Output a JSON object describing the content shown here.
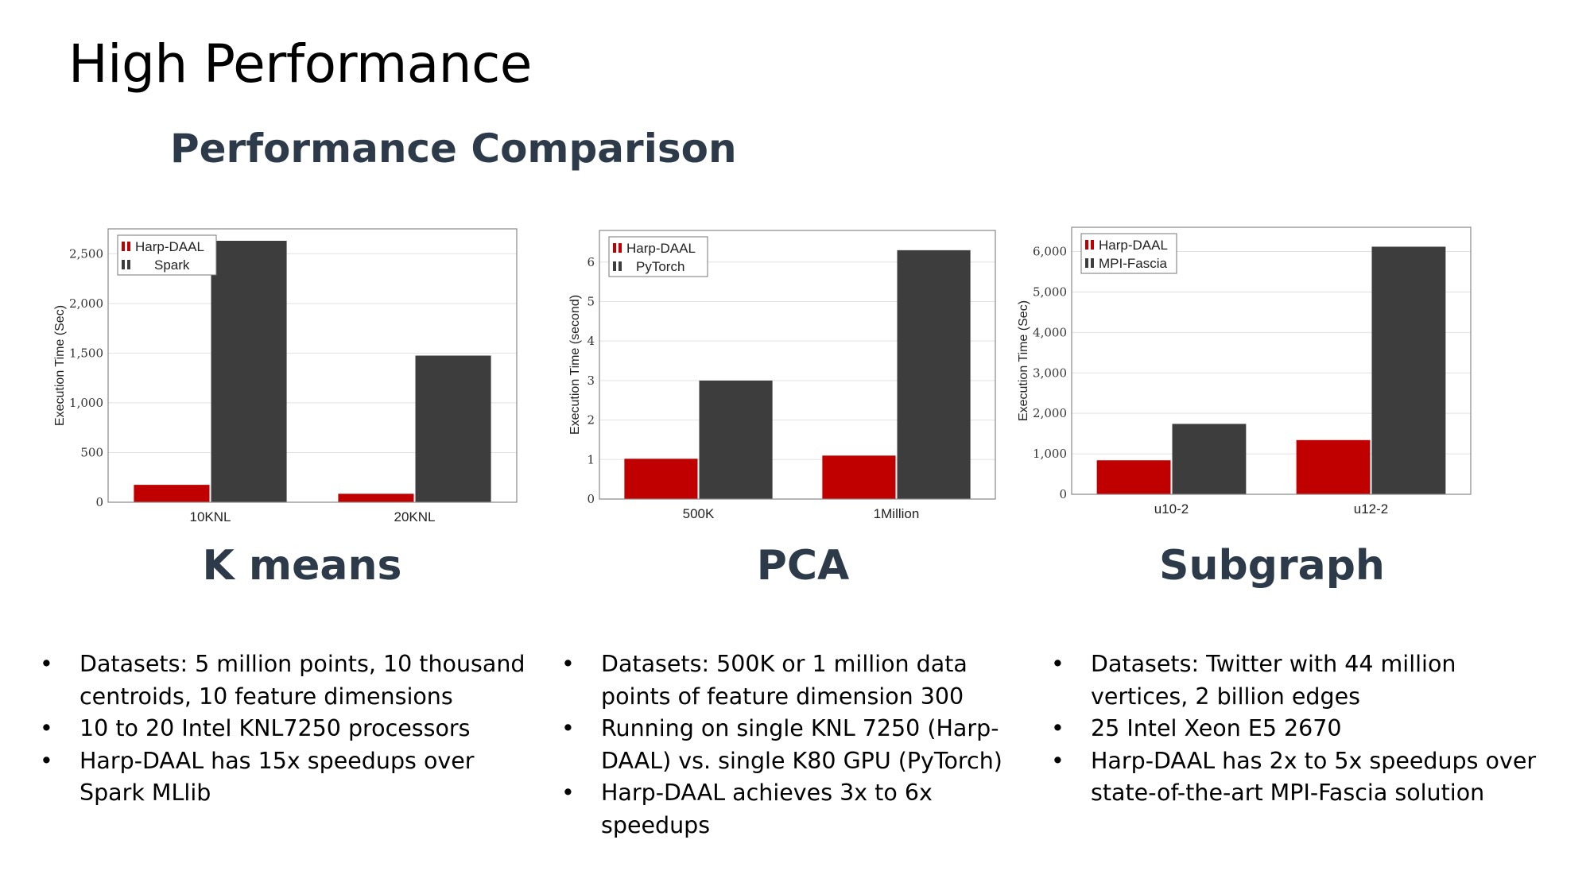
{
  "slide": {
    "title": "High Performance",
    "subtitle": "Performance Comparison"
  },
  "colors": {
    "series_a": "#c00000",
    "series_b": "#3d3d3d",
    "heading": "#2c3a4a"
  },
  "chart_data": [
    {
      "type": "bar",
      "name": "K means",
      "categories": [
        "10KNL",
        "20KNL"
      ],
      "series": [
        {
          "name": "Harp-DAAL",
          "values": [
            175,
            85
          ]
        },
        {
          "name": "Spark",
          "values": [
            2630,
            1475
          ]
        }
      ],
      "ylabel": "Execution Time (Sec)",
      "xlabel": "",
      "ylim": [
        0,
        2750
      ],
      "yticks": [
        0,
        500,
        1000,
        1500,
        2000,
        2500
      ],
      "ytick_labels": [
        "0",
        "500",
        "1,000",
        "1,500",
        "2,000",
        "2,500"
      ],
      "grid": true,
      "legend": "top-left"
    },
    {
      "type": "bar",
      "name": "PCA",
      "categories": [
        "500K",
        "1Million"
      ],
      "series": [
        {
          "name": "Harp-DAAL",
          "values": [
            1.02,
            1.1
          ]
        },
        {
          "name": "PyTorch",
          "values": [
            3.0,
            6.3
          ]
        }
      ],
      "ylabel": "Execution Time (second)",
      "xlabel": "",
      "ylim": [
        0,
        6.8
      ],
      "yticks": [
        0,
        1,
        2,
        3,
        4,
        5,
        6
      ],
      "ytick_labels": [
        "0",
        "1",
        "2",
        "3",
        "4",
        "5",
        "6"
      ],
      "grid": true,
      "legend": "top-left"
    },
    {
      "type": "bar",
      "name": "Subgraph",
      "categories": [
        "u10-2",
        "u12-2"
      ],
      "series": [
        {
          "name": "Harp-DAAL",
          "values": [
            840,
            1340
          ]
        },
        {
          "name": "MPI-Fascia",
          "values": [
            1740,
            6120
          ]
        }
      ],
      "ylabel": "Execution Time (Sec)",
      "xlabel": "",
      "ylim": [
        0,
        6600
      ],
      "yticks": [
        0,
        1000,
        2000,
        3000,
        4000,
        5000,
        6000
      ],
      "ytick_labels": [
        "0",
        "1,000",
        "2,000",
        "3,000",
        "4,000",
        "5,000",
        "6,000"
      ],
      "grid": true,
      "legend": "top-left"
    }
  ],
  "sections": [
    {
      "heading": "K means",
      "bullets": [
        "Datasets: 5 million points, 10 thousand centroids, 10 feature dimensions",
        "10 to 20 Intel KNL7250 processors",
        "Harp-DAAL has 15x speedups over Spark MLlib"
      ]
    },
    {
      "heading": "PCA",
      "bullets": [
        "Datasets: 500K or 1 million data points of feature dimension 300",
        "Running on single KNL 7250 (Harp-DAAL) vs. single K80 GPU (PyTorch)",
        "Harp-DAAL achieves 3x to 6x speedups"
      ]
    },
    {
      "heading": "Subgraph",
      "bullets": [
        "Datasets: Twitter with 44 million vertices, 2 billion edges",
        "25 Intel Xeon E5 2670",
        "Harp-DAAL has 2x to 5x speedups over state-of-the-art MPI-Fascia solution"
      ]
    }
  ]
}
